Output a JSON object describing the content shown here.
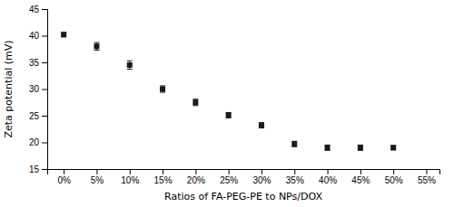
{
  "chart_data": {
    "type": "scatter",
    "x": [
      0,
      5,
      10,
      15,
      20,
      25,
      30,
      35,
      40,
      45,
      50
    ],
    "values": [
      40.2,
      38.0,
      34.5,
      30.0,
      27.5,
      25.1,
      23.2,
      19.7,
      19.0,
      19.0,
      19.0
    ],
    "errors": [
      0.4,
      0.7,
      0.8,
      0.6,
      0.6,
      0.5,
      0.5,
      0.5,
      0.5,
      0.5,
      0.4
    ],
    "color": "#1a1a1a",
    "marker": "square",
    "grid": false,
    "xlabel": "Ratios of FA-PEG-PE to NPs/DOX",
    "ylabel": "Zeta potential (mV)",
    "xlim": [
      -2.5,
      57
    ],
    "xticks": [
      {
        "value": 0,
        "label": "0%"
      },
      {
        "value": 5,
        "label": "5%"
      },
      {
        "value": 10,
        "label": "10%"
      },
      {
        "value": 15,
        "label": "15%"
      },
      {
        "value": 20,
        "label": "20%"
      },
      {
        "value": 25,
        "label": "25%"
      },
      {
        "value": 30,
        "label": "30%"
      },
      {
        "value": 35,
        "label": "35%"
      },
      {
        "value": 40,
        "label": "40%"
      },
      {
        "value": 45,
        "label": "45%"
      },
      {
        "value": 50,
        "label": "50%"
      },
      {
        "value": 55,
        "label": "55%"
      }
    ],
    "ylim": [
      15,
      45
    ],
    "yticks": [
      15,
      20,
      25,
      30,
      35,
      40,
      45
    ]
  }
}
